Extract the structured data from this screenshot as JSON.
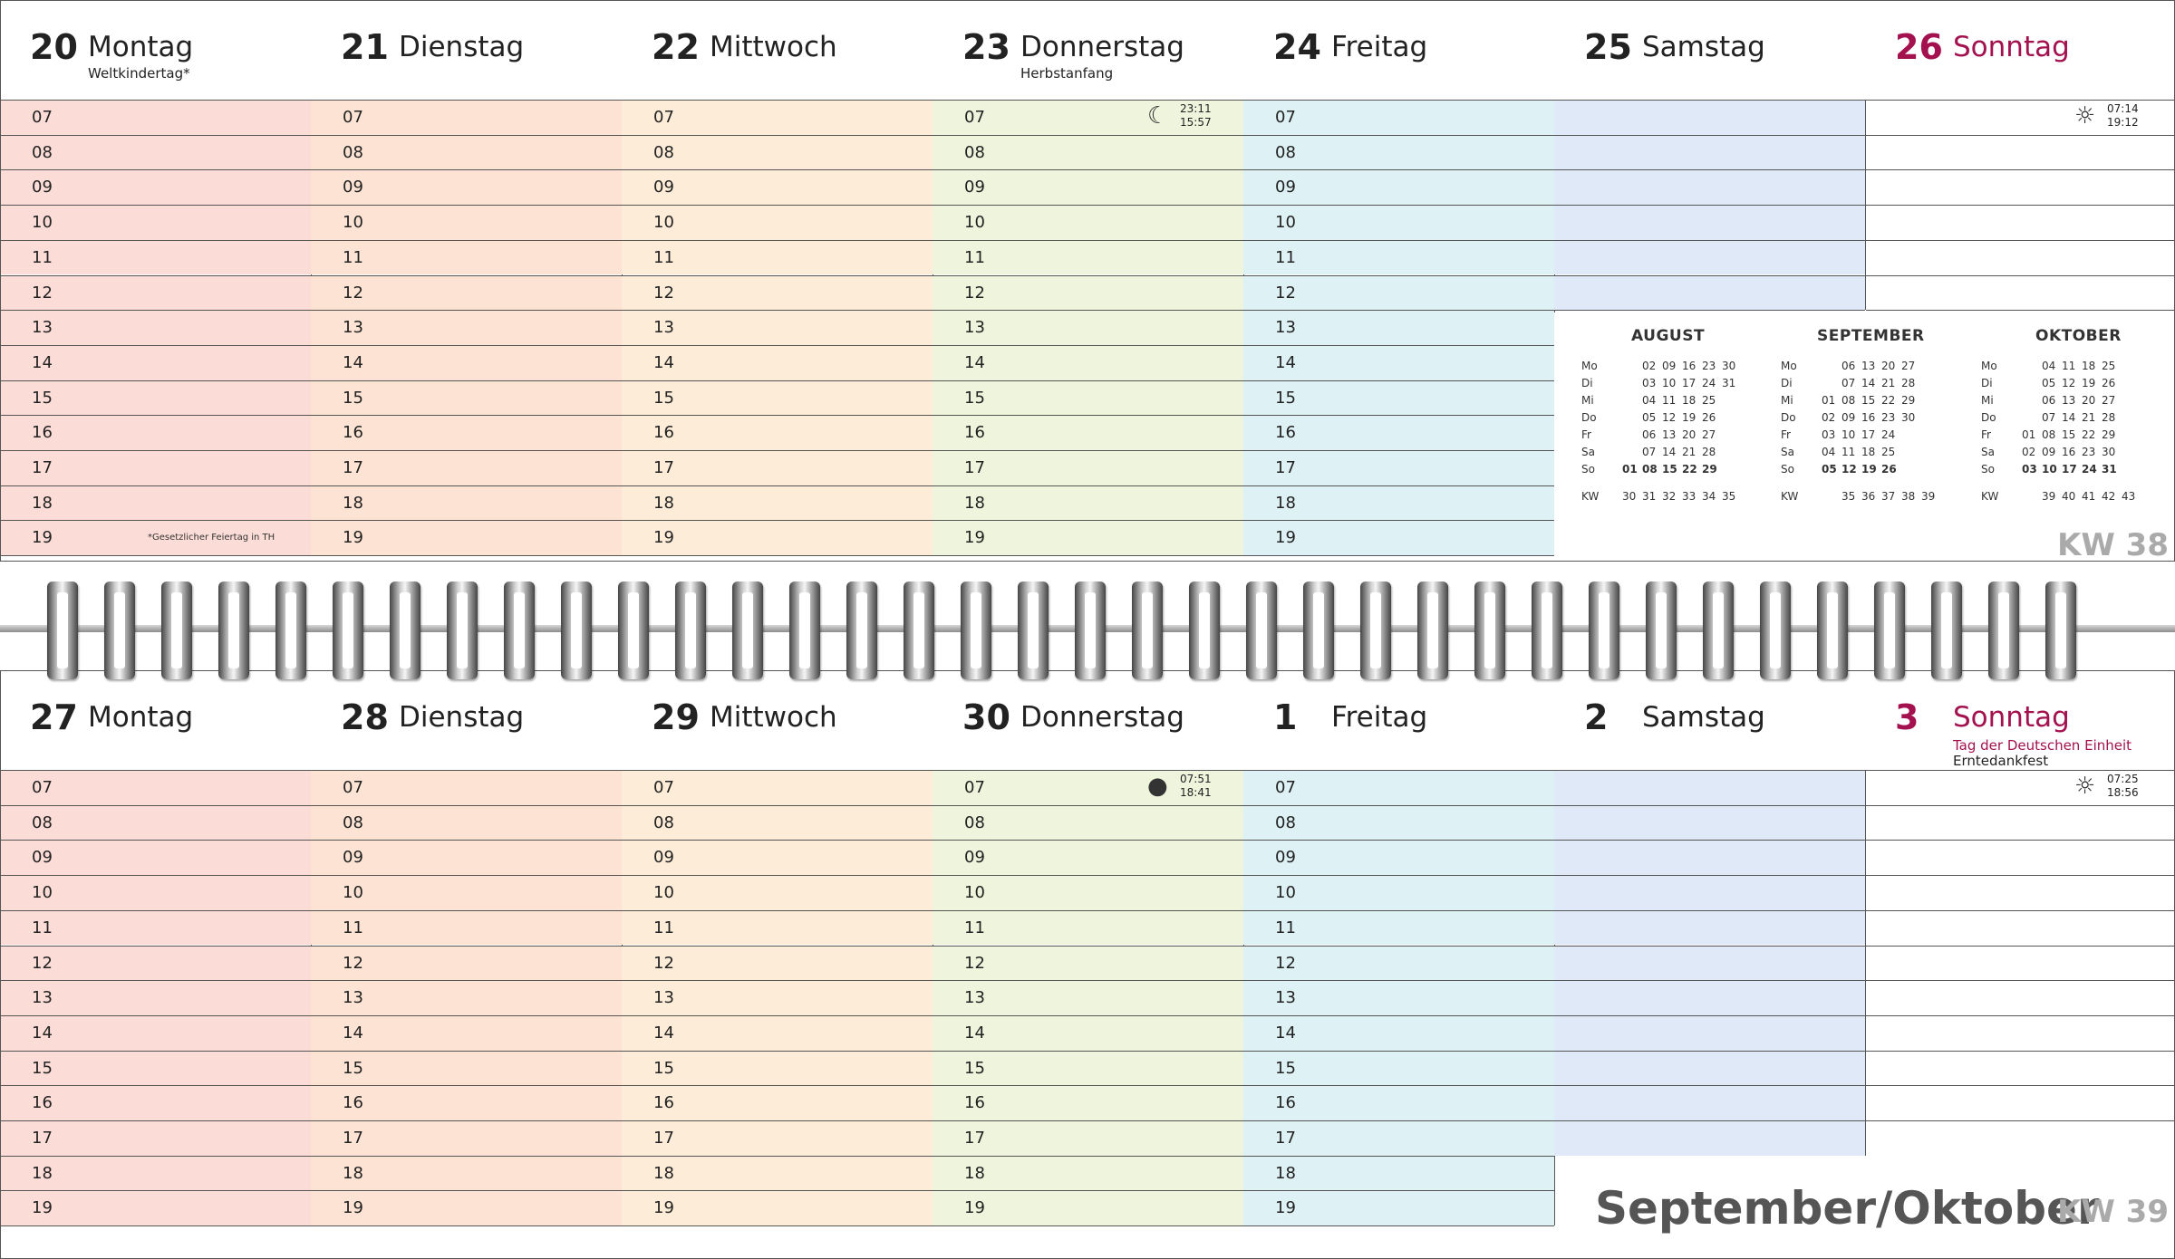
{
  "colors": {
    "mon": "#fbdcd6",
    "tue": "#fce3d3",
    "wed": "#fdedd8",
    "thu": "#eef5dc",
    "fri": "#def1f5",
    "sat": "#dfe9f8",
    "sun": "#ffffff",
    "sunday_accent": "#a3124f"
  },
  "hours": [
    "07",
    "08",
    "09",
    "10",
    "11",
    "12",
    "13",
    "14",
    "15",
    "16",
    "17",
    "18",
    "19"
  ],
  "week1": {
    "days": [
      {
        "num": "20",
        "name": "Montag",
        "sub": "Weltkindertag*"
      },
      {
        "num": "21",
        "name": "Dienstag",
        "sub": ""
      },
      {
        "num": "22",
        "name": "Mittwoch",
        "sub": ""
      },
      {
        "num": "23",
        "name": "Donnerstag",
        "sub": "Herbstanfang"
      },
      {
        "num": "24",
        "name": "Freitag",
        "sub": ""
      },
      {
        "num": "25",
        "name": "Samstag",
        "sub": ""
      },
      {
        "num": "26",
        "name": "Sonntag",
        "sub": ""
      }
    ],
    "moon_times": [
      "23:11",
      "15:57"
    ],
    "sun_times": [
      "07:14",
      "19:12"
    ],
    "footnote": "*Gesetzlicher Feiertag in TH",
    "kw": "KW 38"
  },
  "week2": {
    "days": [
      {
        "num": "27",
        "name": "Montag",
        "sub": ""
      },
      {
        "num": "28",
        "name": "Dienstag",
        "sub": ""
      },
      {
        "num": "29",
        "name": "Mittwoch",
        "sub": ""
      },
      {
        "num": "30",
        "name": "Donnerstag",
        "sub": ""
      },
      {
        "num": "1",
        "name": "Freitag",
        "sub": ""
      },
      {
        "num": "2",
        "name": "Samstag",
        "sub": ""
      },
      {
        "num": "3",
        "name": "Sonntag",
        "sub": "Tag der Deutschen Einheit",
        "sub2": "Erntedankfest"
      }
    ],
    "moon_times": [
      "07:51",
      "18:41"
    ],
    "sun_times": [
      "07:25",
      "18:56"
    ],
    "month_title": "September/Oktober",
    "kw": "KW 39"
  },
  "mini_calendars": [
    {
      "title": "AUGUST",
      "rows": [
        {
          "day": "Mo",
          "dates": [
            "",
            "02",
            "09",
            "16",
            "23",
            "30"
          ]
        },
        {
          "day": "Di",
          "dates": [
            "",
            "03",
            "10",
            "17",
            "24",
            "31"
          ]
        },
        {
          "day": "Mi",
          "dates": [
            "",
            "04",
            "11",
            "18",
            "25",
            ""
          ]
        },
        {
          "day": "Do",
          "dates": [
            "",
            "05",
            "12",
            "19",
            "26",
            ""
          ]
        },
        {
          "day": "Fr",
          "dates": [
            "",
            "06",
            "13",
            "20",
            "27",
            ""
          ]
        },
        {
          "day": "Sa",
          "dates": [
            "",
            "07",
            "14",
            "21",
            "28",
            ""
          ]
        },
        {
          "day": "So",
          "dates": [
            "01",
            "08",
            "15",
            "22",
            "29",
            ""
          ]
        }
      ],
      "kw_label": "KW",
      "kw": [
        "30",
        "31",
        "32",
        "33",
        "34",
        "35"
      ]
    },
    {
      "title": "SEPTEMBER",
      "rows": [
        {
          "day": "Mo",
          "dates": [
            "",
            "06",
            "13",
            "20",
            "27"
          ]
        },
        {
          "day": "Di",
          "dates": [
            "",
            "07",
            "14",
            "21",
            "28"
          ]
        },
        {
          "day": "Mi",
          "dates": [
            "01",
            "08",
            "15",
            "22",
            "29"
          ]
        },
        {
          "day": "Do",
          "dates": [
            "02",
            "09",
            "16",
            "23",
            "30"
          ]
        },
        {
          "day": "Fr",
          "dates": [
            "03",
            "10",
            "17",
            "24",
            ""
          ]
        },
        {
          "day": "Sa",
          "dates": [
            "04",
            "11",
            "18",
            "25",
            ""
          ]
        },
        {
          "day": "So",
          "dates": [
            "05",
            "12",
            "19",
            "26",
            ""
          ]
        }
      ],
      "kw_label": "KW",
      "kw": [
        "35",
        "36",
        "37",
        "38",
        "39"
      ]
    },
    {
      "title": "OKTOBER",
      "rows": [
        {
          "day": "Mo",
          "dates": [
            "",
            "04",
            "11",
            "18",
            "25"
          ]
        },
        {
          "day": "Di",
          "dates": [
            "",
            "05",
            "12",
            "19",
            "26"
          ]
        },
        {
          "day": "Mi",
          "dates": [
            "",
            "06",
            "13",
            "20",
            "27"
          ]
        },
        {
          "day": "Do",
          "dates": [
            "",
            "07",
            "14",
            "21",
            "28"
          ]
        },
        {
          "day": "Fr",
          "dates": [
            "01",
            "08",
            "15",
            "22",
            "29"
          ]
        },
        {
          "day": "Sa",
          "dates": [
            "02",
            "09",
            "16",
            "23",
            "30"
          ]
        },
        {
          "day": "So",
          "dates": [
            "03",
            "10",
            "17",
            "24",
            "31"
          ]
        }
      ],
      "kw_label": "KW",
      "kw": [
        "39",
        "40",
        "41",
        "42",
        "43"
      ]
    }
  ]
}
